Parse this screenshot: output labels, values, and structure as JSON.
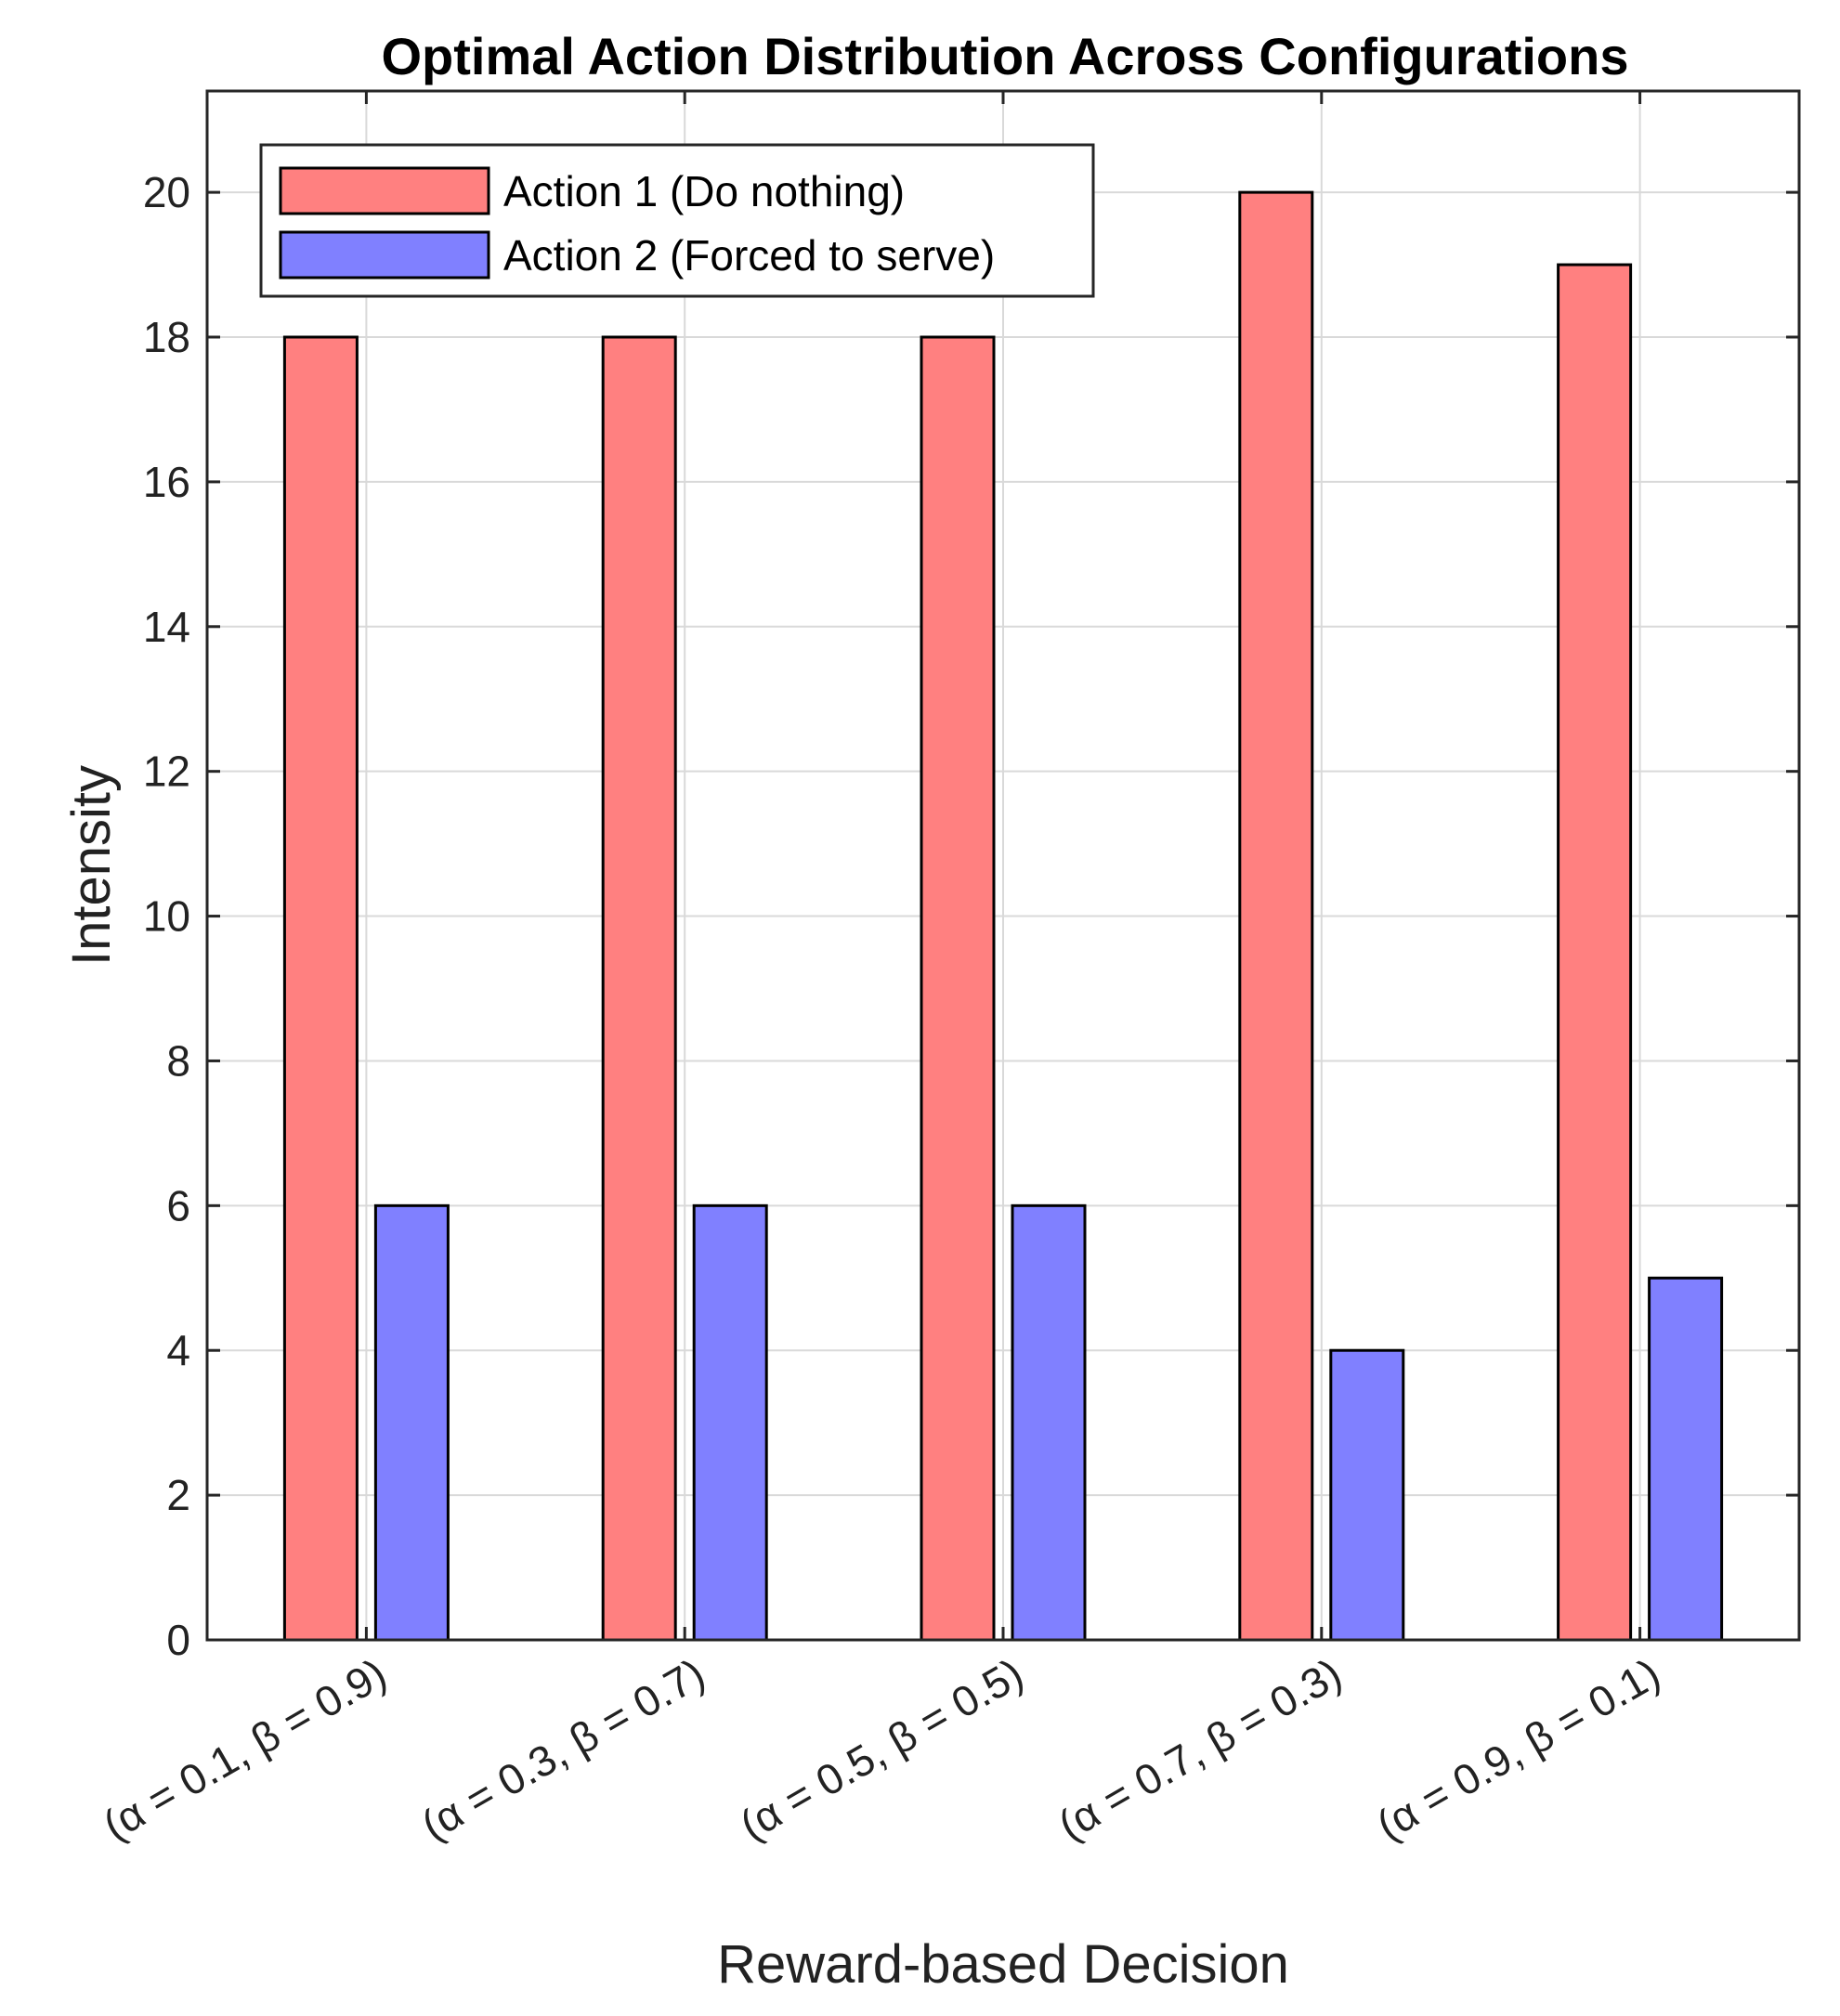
{
  "chart_data": {
    "type": "bar",
    "title": "Optimal Action Distribution Across Configurations",
    "xlabel": "Reward-based Decision",
    "ylabel": "Intensity",
    "categories": [
      "(α = 0.1, β = 0.9)",
      "(α = 0.3, β = 0.7)",
      "(α = 0.5, β = 0.5)",
      "(α = 0.7, β = 0.3)",
      "(α = 0.9, β = 0.1)"
    ],
    "series": [
      {
        "name": "Action 1 (Do nothing)",
        "values": [
          18,
          18,
          18,
          20,
          19
        ],
        "color": "#ff8080"
      },
      {
        "name": "Action 2 (Forced to serve)",
        "values": [
          6,
          6,
          6,
          4,
          5
        ],
        "color": "#8080ff"
      }
    ],
    "ylim": [
      0,
      21.4
    ],
    "yticks": [
      0,
      2,
      4,
      6,
      8,
      10,
      12,
      14,
      16,
      18,
      20
    ],
    "grid": true,
    "legend_position": "top-left"
  }
}
